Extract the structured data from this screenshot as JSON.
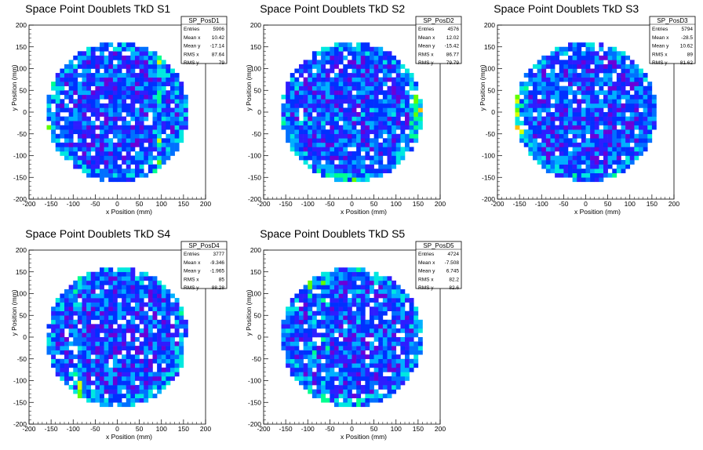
{
  "chart_data": [
    {
      "type": "heatmap",
      "title": "Space Point Doublets TkD S1",
      "xlabel": "x Position (mm)",
      "ylabel": "y Position (mm)",
      "xlim": [
        -200,
        200
      ],
      "ylim": [
        -200,
        200
      ],
      "x_ticks": [
        "-200",
        "-150",
        "-100",
        "-50",
        "0",
        "50",
        "100",
        "150",
        "200"
      ],
      "y_ticks": [
        "-200",
        "-150",
        "-100",
        "-50",
        "0",
        "50",
        "100",
        "150",
        "200"
      ],
      "disk_radius": 160,
      "hot_regions": [
        "vertical band near x = 95",
        "left edge x = -150"
      ],
      "stats": {
        "name": "SP_PosD1",
        "rows": [
          {
            "label": "Entries",
            "value": "5906"
          },
          {
            "label": "Mean x",
            "value": "10.42"
          },
          {
            "label": "Mean y",
            "value": "-17.14"
          },
          {
            "label": "RMS x",
            "value": "87.64"
          },
          {
            "label": "RMS y",
            "value": "79"
          }
        ]
      }
    },
    {
      "type": "heatmap",
      "title": "Space Point Doublets TkD S2",
      "xlabel": "x Position (mm)",
      "ylabel": "y Position (mm)",
      "xlim": [
        -200,
        200
      ],
      "ylim": [
        -200,
        200
      ],
      "x_ticks": [
        "-200",
        "-150",
        "-100",
        "-50",
        "0",
        "50",
        "100",
        "150",
        "200"
      ],
      "y_ticks": [
        "-200",
        "-150",
        "-100",
        "-50",
        "0",
        "50",
        "100",
        "150",
        "200"
      ],
      "disk_radius": 160,
      "hot_regions": [
        "right edge x = 150",
        "bottom edge y = -150"
      ],
      "stats": {
        "name": "SP_PosD2",
        "rows": [
          {
            "label": "Entries",
            "value": "4576"
          },
          {
            "label": "Mean x",
            "value": "12.02"
          },
          {
            "label": "Mean y",
            "value": "-15.42"
          },
          {
            "label": "RMS x",
            "value": "86.77"
          },
          {
            "label": "RMS y",
            "value": "79.79"
          }
        ]
      }
    },
    {
      "type": "heatmap",
      "title": "Space Point Doublets TkD S3",
      "xlabel": "x Position (mm)",
      "ylabel": "y Position (mm)",
      "xlim": [
        -200,
        200
      ],
      "ylim": [
        -200,
        200
      ],
      "x_ticks": [
        "-200",
        "-150",
        "-100",
        "-50",
        "0",
        "50",
        "100",
        "150",
        "200"
      ],
      "y_ticks": [
        "-200",
        "-150",
        "-100",
        "-50",
        "0",
        "50",
        "100",
        "150",
        "200"
      ],
      "disk_radius": 160,
      "hot_regions": [
        "left edge x = -150"
      ],
      "stats": {
        "name": "SP_PosD3",
        "rows": [
          {
            "label": "Entries",
            "value": "5794"
          },
          {
            "label": "Mean x",
            "value": "-28.5"
          },
          {
            "label": "Mean y",
            "value": "10.62"
          },
          {
            "label": "RMS x",
            "value": "89"
          },
          {
            "label": "RMS y",
            "value": "81.62"
          }
        ]
      }
    },
    {
      "type": "heatmap",
      "title": "Space Point Doublets TkD S4",
      "xlabel": "x Position (mm)",
      "ylabel": "y Position (mm)",
      "xlim": [
        -200,
        200
      ],
      "ylim": [
        -200,
        200
      ],
      "x_ticks": [
        "-200",
        "-150",
        "-100",
        "-50",
        "0",
        "50",
        "100",
        "150",
        "200"
      ],
      "y_ticks": [
        "-200",
        "-150",
        "-100",
        "-50",
        "0",
        "50",
        "100",
        "150",
        "200"
      ],
      "disk_radius": 160,
      "hot_regions": [
        "lower-left near x = -90, y = -110"
      ],
      "stats": {
        "name": "SP_PosD4",
        "rows": [
          {
            "label": "Entries",
            "value": "3777"
          },
          {
            "label": "Mean x",
            "value": "-9.346"
          },
          {
            "label": "Mean y",
            "value": "-1.965"
          },
          {
            "label": "RMS x",
            "value": "85"
          },
          {
            "label": "RMS y",
            "value": "88.28"
          }
        ]
      }
    },
    {
      "type": "heatmap",
      "title": "Space Point Doublets TkD S5",
      "xlabel": "x Position (mm)",
      "ylabel": "y Position (mm)",
      "xlim": [
        -200,
        200
      ],
      "ylim": [
        -200,
        200
      ],
      "x_ticks": [
        "-200",
        "-150",
        "-100",
        "-50",
        "0",
        "50",
        "100",
        "150",
        "200"
      ],
      "y_ticks": [
        "-200",
        "-150",
        "-100",
        "-50",
        "0",
        "50",
        "100",
        "150",
        "200"
      ],
      "disk_radius": 160,
      "hot_regions": [
        "vertical bands near x = -90 and x = -60"
      ],
      "stats": {
        "name": "SP_PosD5",
        "rows": [
          {
            "label": "Entries",
            "value": "4724"
          },
          {
            "label": "Mean x",
            "value": "-7.508"
          },
          {
            "label": "Mean y",
            "value": "6.745"
          },
          {
            "label": "RMS x",
            "value": "82.2"
          },
          {
            "label": "RMS y",
            "value": "82.6"
          }
        ]
      }
    }
  ],
  "palette": [
    "#ffffff",
    "#6a00d8",
    "#2e1dff",
    "#0030ff",
    "#0070ff",
    "#00b0ff",
    "#00e8e0",
    "#00ff90",
    "#60ff00",
    "#d8ff00",
    "#ffc000",
    "#ff4000"
  ]
}
